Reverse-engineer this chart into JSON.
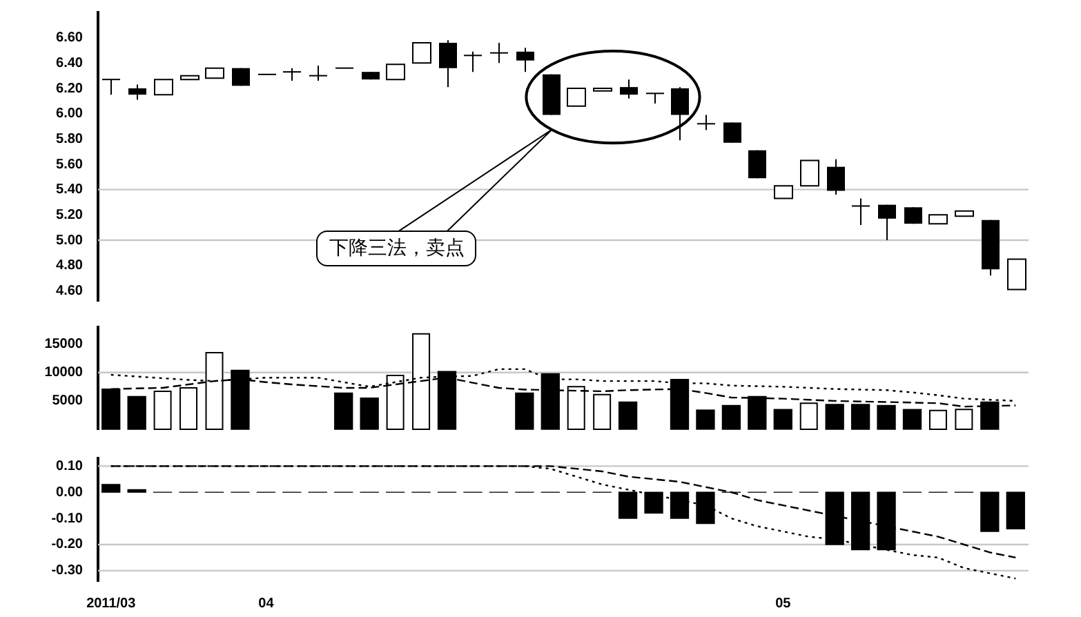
{
  "chart_data": [
    {
      "type": "candlestick",
      "categories": [
        null,
        null,
        null,
        null,
        null,
        null,
        null,
        null,
        null,
        null,
        null,
        null,
        null,
        null,
        null,
        null,
        null,
        null,
        null,
        null,
        null,
        null,
        null,
        null,
        null,
        null,
        null,
        null,
        null,
        null,
        null,
        null,
        null,
        null,
        null,
        null
      ],
      "ohlc": [
        [
          6.27,
          6.27,
          6.15,
          6.27
        ],
        [
          6.2,
          6.23,
          6.11,
          6.15
        ],
        [
          6.15,
          6.27,
          6.15,
          6.27
        ],
        [
          6.27,
          6.3,
          6.27,
          6.3
        ],
        [
          6.28,
          6.36,
          6.28,
          6.36
        ],
        [
          6.36,
          6.36,
          6.22,
          6.22
        ],
        [
          6.31,
          6.31,
          6.31,
          6.31
        ],
        [
          6.33,
          6.36,
          6.26,
          6.33
        ],
        [
          6.3,
          6.38,
          6.26,
          6.3
        ],
        [
          6.36,
          6.36,
          6.36,
          6.36
        ],
        [
          6.33,
          6.33,
          6.27,
          6.27
        ],
        [
          6.27,
          6.39,
          6.27,
          6.39
        ],
        [
          6.4,
          6.56,
          6.4,
          6.56
        ],
        [
          6.56,
          6.58,
          6.21,
          6.36
        ],
        [
          6.46,
          6.49,
          6.33,
          6.46
        ],
        [
          6.48,
          6.56,
          6.4,
          6.48
        ],
        [
          6.49,
          6.52,
          6.33,
          6.42
        ],
        [
          6.31,
          6.31,
          5.99,
          5.99
        ],
        [
          6.06,
          6.2,
          6.06,
          6.2
        ],
        [
          6.18,
          6.2,
          6.18,
          6.2
        ],
        [
          6.21,
          6.27,
          6.12,
          6.15
        ],
        [
          6.16,
          6.16,
          6.08,
          6.16
        ],
        [
          6.2,
          6.21,
          5.79,
          5.99
        ],
        [
          5.92,
          5.99,
          5.87,
          5.92
        ],
        [
          5.93,
          5.93,
          5.77,
          5.77
        ],
        [
          5.71,
          5.71,
          5.49,
          5.49
        ],
        [
          5.33,
          5.43,
          5.33,
          5.43
        ],
        [
          5.43,
          5.63,
          5.43,
          5.63
        ],
        [
          5.58,
          5.64,
          5.36,
          5.39
        ],
        [
          5.27,
          5.33,
          5.12,
          5.27
        ],
        [
          5.28,
          5.28,
          5.0,
          5.17
        ],
        [
          5.26,
          5.26,
          5.13,
          5.13
        ],
        [
          5.13,
          5.2,
          5.13,
          5.2
        ],
        [
          5.19,
          5.23,
          5.19,
          5.23
        ],
        [
          5.16,
          5.16,
          4.72,
          4.77
        ],
        [
          4.61,
          4.85,
          4.61,
          4.85
        ]
      ],
      "ylim": [
        4.52,
        6.8
      ],
      "yticks": [
        {
          "value": 4.6,
          "label": "4.60"
        },
        {
          "value": 4.8,
          "label": "4.80"
        },
        {
          "value": 5,
          "label": "5.00"
        },
        {
          "value": 5.2,
          "label": "5.20"
        },
        {
          "value": 5.4,
          "label": "5.40"
        },
        {
          "value": 5.6,
          "label": "5.60"
        },
        {
          "value": 5.8,
          "label": "5.80"
        },
        {
          "value": 6,
          "label": "6.00"
        },
        {
          "value": 6.2,
          "label": "6.20"
        },
        {
          "value": 6.4,
          "label": "6.40"
        },
        {
          "value": 6.6,
          "label": "6.60"
        }
      ],
      "ref_lines": [
        {
          "axis": "y",
          "value": 5.4,
          "color": "#c8c8c8"
        },
        {
          "axis": "y",
          "value": 5,
          "color": "#c8c8c8"
        }
      ],
      "annotations": [
        "下降三法，卖点"
      ],
      "tick_labels": "y"
    },
    {
      "type": "bar",
      "categories": [
        null,
        null,
        null,
        null,
        null,
        null,
        null,
        null,
        null,
        null,
        null,
        null,
        null,
        null,
        null,
        null,
        null,
        null,
        null,
        null,
        null,
        null,
        null,
        null,
        null,
        null,
        null,
        null,
        null,
        null,
        null,
        null,
        null,
        null,
        null,
        null
      ],
      "series": [
        {
          "type": "bar",
          "colors": [
            "#000000",
            "#000000",
            "#ffffff",
            "#ffffff",
            "#ffffff",
            "#000000",
            "#000000",
            "#000000",
            "#000000",
            "#000000",
            "#000000",
            "#ffffff",
            "#ffffff",
            "#000000",
            "#000000",
            "#000000",
            "#000000",
            "#000000",
            "#ffffff",
            "#ffffff",
            "#000000",
            "#000000",
            "#000000",
            "#000000",
            "#000000",
            "#000000",
            "#000000",
            "#ffffff",
            "#000000",
            "#000000",
            "#000000",
            "#000000",
            "#ffffff",
            "#ffffff",
            "#000000",
            "#000000"
          ],
          "values": [
            7100,
            5800,
            6700,
            7300,
            13500,
            10400,
            null,
            null,
            null,
            6400,
            5500,
            9500,
            16800,
            10200,
            null,
            null,
            6400,
            9800,
            7500,
            6100,
            4800,
            null,
            8800,
            3400,
            4200,
            5800,
            3500,
            4600,
            4400,
            4400,
            4200,
            3500,
            3300,
            3500,
            4800,
            null
          ]
        },
        {
          "type": "line",
          "color": "#000000",
          "line_style": "dotted",
          "values": [
            9600,
            9300,
            9000,
            8700,
            8500,
            8800,
            9100,
            9100,
            9100,
            8300,
            7500,
            8300,
            9100,
            9300,
            9400,
            10600,
            10600,
            8800,
            8800,
            8500,
            8500,
            8500,
            8100,
            8100,
            7700,
            7600,
            7500,
            7300,
            7100,
            7000,
            6900,
            6500,
            6000,
            5400,
            5200,
            5000
          ]
        },
        {
          "type": "line",
          "color": "#000000",
          "line_style": "dashed",
          "values": [
            7100,
            7200,
            7300,
            7900,
            8500,
            8800,
            8300,
            7900,
            7600,
            7300,
            7300,
            7900,
            8500,
            9100,
            8200,
            7300,
            7000,
            6900,
            6800,
            6700,
            6900,
            7000,
            7100,
            6400,
            5600,
            5500,
            5400,
            5200,
            5000,
            4900,
            4800,
            4700,
            4600,
            4000,
            4100,
            4200
          ]
        }
      ],
      "ylim": [
        0,
        18000
      ],
      "yticks": [
        5000,
        10000,
        15000
      ],
      "ref_lines": [
        {
          "axis": "y",
          "value": 10000,
          "color": "#c8c8c8"
        }
      ],
      "tick_labels": "y"
    },
    {
      "type": "bar",
      "categories": [
        "2011/03",
        null,
        null,
        null,
        null,
        null,
        "04",
        null,
        null,
        null,
        null,
        null,
        null,
        null,
        null,
        null,
        null,
        null,
        null,
        null,
        null,
        null,
        null,
        null,
        null,
        null,
        "05",
        null,
        null,
        null,
        null,
        null,
        null,
        null,
        null,
        null
      ],
      "series": [
        {
          "type": "bar",
          "color": "#000000",
          "values": [
            0.03,
            0.01,
            0,
            0,
            0,
            0,
            0,
            0,
            0,
            0,
            0,
            0,
            0,
            0,
            0,
            0,
            0,
            0,
            0,
            0,
            -0.1,
            -0.08,
            -0.1,
            -0.12,
            0,
            0,
            0,
            0,
            -0.2,
            -0.22,
            -0.22,
            0,
            0,
            0,
            -0.15,
            -0.14
          ]
        },
        {
          "type": "line",
          "color": "#000000",
          "line_style": "dashed",
          "values": [
            0.1,
            0.1,
            0.1,
            0.1,
            0.1,
            0.1,
            0.1,
            0.1,
            0.1,
            0.1,
            0.1,
            0.1,
            0.1,
            0.1,
            0.1,
            0.1,
            0.1,
            0.1,
            0.09,
            0.08,
            0.06,
            0.05,
            0.04,
            0.02,
            0,
            -0.03,
            -0.05,
            -0.07,
            -0.09,
            -0.11,
            -0.13,
            -0.15,
            -0.17,
            -0.2,
            -0.23,
            -0.25
          ]
        },
        {
          "type": "line",
          "color": "#000000",
          "line_style": "dotted",
          "values": [
            0.1,
            0.1,
            0.1,
            0.1,
            0.1,
            0.1,
            0.1,
            0.1,
            0.1,
            0.1,
            0.1,
            0.1,
            0.1,
            0.1,
            0.1,
            0.1,
            0.1,
            0.09,
            0.06,
            0.03,
            0.01,
            -0.01,
            -0.03,
            -0.05,
            -0.1,
            -0.13,
            -0.15,
            -0.17,
            -0.18,
            -0.2,
            -0.22,
            -0.24,
            -0.25,
            -0.29,
            -0.31,
            -0.33
          ]
        }
      ],
      "ylim": [
        -0.34,
        0.13
      ],
      "yticks": [
        {
          "value": 0.1,
          "label": "0.10"
        },
        {
          "value": 0,
          "label": "0.00"
        },
        {
          "value": -0.1,
          "label": "-0.10"
        },
        {
          "value": -0.2,
          "label": "-0.20"
        },
        {
          "value": -0.3,
          "label": "-0.30"
        }
      ],
      "ref_lines": [
        {
          "axis": "y",
          "value": 0.1,
          "color": "#c8c8c8"
        },
        {
          "axis": "y",
          "value": -0.2,
          "color": "#c8c8c8"
        },
        {
          "axis": "y",
          "value": -0.3,
          "color": "#c8c8c8"
        }
      ]
    }
  ]
}
